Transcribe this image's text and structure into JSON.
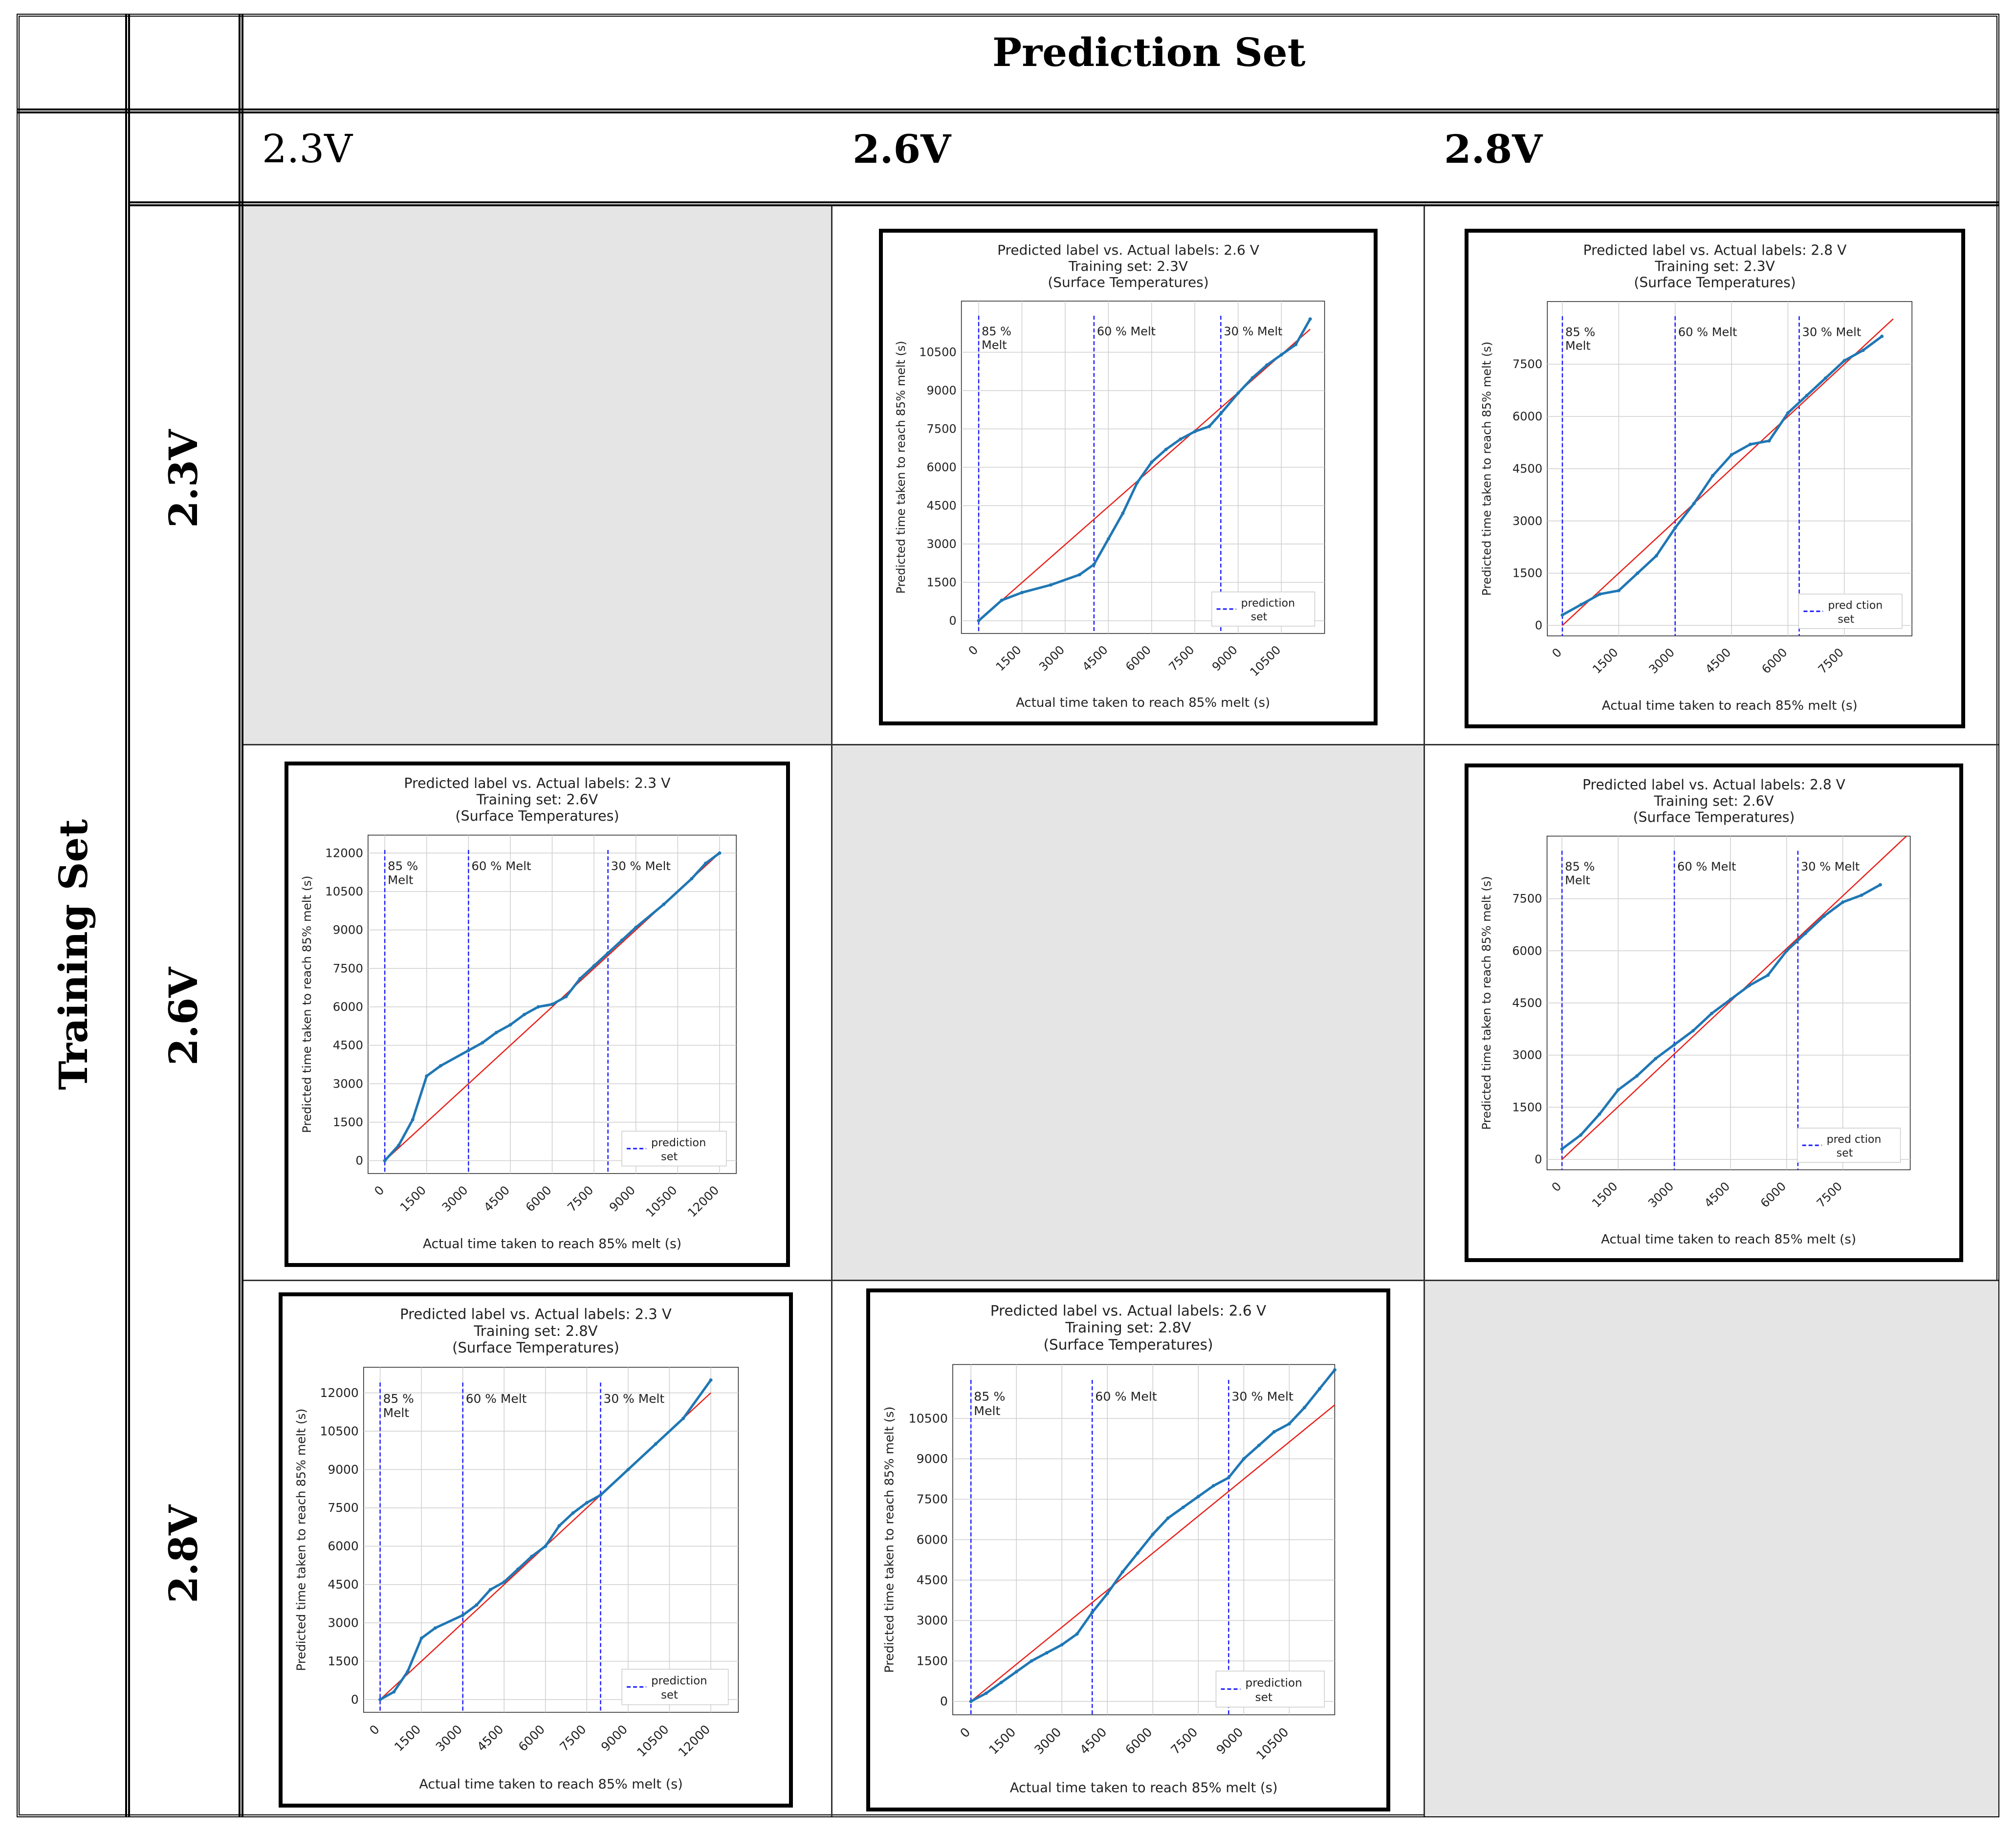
{
  "headers": {
    "prediction_set": "Prediction Set",
    "training_set": "Training Set",
    "col_labels": [
      "2.3V",
      "2.6V",
      "2.8V"
    ],
    "row_labels": [
      "2.3V",
      "2.6V",
      "2.8V"
    ]
  },
  "colors": {
    "prediction_line": "#1f77b4",
    "ideal_line": "#e8201a",
    "melt_line": "#1a1aff",
    "empty_cell": "#e5e5e5"
  },
  "chart_data": [
    {
      "id": "p_2.6_t_2.3",
      "type": "scatter",
      "title": "Predicted label vs. Actual labels: 2.6 V",
      "subtitle": "Training set: 2.3V",
      "subtitle2": "(Surface Temperatures)",
      "xlabel": "Actual time taken to reach 85% melt (s)",
      "ylabel": "Predicted time taken to reach 85% melt (s)",
      "xlim": [
        -600,
        12000
      ],
      "ylim": [
        -500,
        12500
      ],
      "xticks": [
        0,
        1500,
        3000,
        4500,
        6000,
        7500,
        9000,
        10500
      ],
      "xtick_labels": [
        "0",
        "1500",
        "3000",
        "4500",
        "6000",
        "7500",
        "9000",
        "10500"
      ],
      "yticks": [
        0,
        1500,
        3000,
        4500,
        6000,
        7500,
        9000,
        10500
      ],
      "ytick_labels": [
        "0",
        "1500",
        "3000",
        "4500",
        "6000",
        "7500",
        "9000",
        "10500"
      ],
      "melt_lines": [
        {
          "x": 0,
          "label": "85 %\nMelt"
        },
        {
          "x": 4000,
          "label": "60 % Melt"
        },
        {
          "x": 8400,
          "label": "30 % Melt"
        }
      ],
      "ideal_line": [
        [
          0,
          0
        ],
        [
          11500,
          11400
        ]
      ],
      "prediction_points": [
        [
          0,
          0
        ],
        [
          800,
          800
        ],
        [
          1500,
          1100
        ],
        [
          2500,
          1400
        ],
        [
          3500,
          1800
        ],
        [
          4000,
          2200
        ],
        [
          4500,
          3200
        ],
        [
          5000,
          4200
        ],
        [
          5500,
          5400
        ],
        [
          6000,
          6200
        ],
        [
          6500,
          6700
        ],
        [
          7000,
          7100
        ],
        [
          7500,
          7400
        ],
        [
          8000,
          7600
        ],
        [
          8400,
          8100
        ],
        [
          9000,
          8900
        ],
        [
          9500,
          9500
        ],
        [
          10000,
          10000
        ],
        [
          10500,
          10400
        ],
        [
          11000,
          10800
        ],
        [
          11500,
          11800
        ]
      ],
      "legend": "prediction set"
    },
    {
      "id": "p_2.8_t_2.3",
      "type": "scatter",
      "title": "Predicted label vs. Actual labels: 2.8 V",
      "subtitle": "Training set: 2.3V",
      "subtitle2": "(Surface Temperatures)",
      "xlabel": "Actual time taken to reach 85% melt (s)",
      "ylabel": "Predicted time taken to reach 85% melt (s)",
      "xlim": [
        -400,
        9300
      ],
      "ylim": [
        -300,
        9300
      ],
      "xticks": [
        0,
        1500,
        3000,
        4500,
        6000,
        7500
      ],
      "xtick_labels": [
        "0",
        "1500",
        "3000",
        "4500",
        "6000",
        "7500"
      ],
      "yticks": [
        0,
        1500,
        3000,
        4500,
        6000,
        7500
      ],
      "ytick_labels": [
        "0",
        "1500",
        "3000",
        "4500",
        "6000",
        "7500"
      ],
      "melt_lines": [
        {
          "x": 0,
          "label": "85 %\nMelt"
        },
        {
          "x": 3000,
          "label": "60 % Melt"
        },
        {
          "x": 6300,
          "label": "30 % Melt"
        }
      ],
      "ideal_line": [
        [
          0,
          0
        ],
        [
          8800,
          8800
        ]
      ],
      "prediction_points": [
        [
          0,
          300
        ],
        [
          500,
          600
        ],
        [
          1000,
          900
        ],
        [
          1500,
          1000
        ],
        [
          2000,
          1500
        ],
        [
          2500,
          2000
        ],
        [
          3000,
          2800
        ],
        [
          3500,
          3500
        ],
        [
          4000,
          4300
        ],
        [
          4500,
          4900
        ],
        [
          5000,
          5200
        ],
        [
          5500,
          5300
        ],
        [
          6000,
          6100
        ],
        [
          6500,
          6600
        ],
        [
          7000,
          7100
        ],
        [
          7500,
          7600
        ],
        [
          8000,
          7900
        ],
        [
          8500,
          8300
        ]
      ],
      "legend": "pred ction set"
    },
    {
      "id": "p_2.3_t_2.6",
      "type": "scatter",
      "title": "Predicted label vs. Actual labels: 2.3 V",
      "subtitle": "Training set: 2.6V",
      "subtitle2": "(Surface Temperatures)",
      "xlabel": "Actual time taken to reach 85% melt (s)",
      "ylabel": "Predicted time taken to reach 85% melt (s)",
      "xlim": [
        -600,
        12600
      ],
      "ylim": [
        -500,
        12700
      ],
      "xticks": [
        0,
        1500,
        3000,
        4500,
        6000,
        7500,
        9000,
        10500,
        12000
      ],
      "xtick_labels": [
        "0",
        "1500",
        "3000",
        "4500",
        "6000",
        "7500",
        "9000",
        "10500",
        "12000"
      ],
      "yticks": [
        0,
        1500,
        3000,
        4500,
        6000,
        7500,
        9000,
        10500,
        12000
      ],
      "ytick_labels": [
        "0",
        "1500",
        "3000",
        "4500",
        "6000",
        "7500",
        "9000",
        "10500",
        "12000"
      ],
      "melt_lines": [
        {
          "x": 0,
          "label": "85 %\nMelt"
        },
        {
          "x": 3000,
          "label": "60 % Melt"
        },
        {
          "x": 8000,
          "label": "30 % Melt"
        }
      ],
      "ideal_line": [
        [
          0,
          0
        ],
        [
          12000,
          12000
        ]
      ],
      "prediction_points": [
        [
          0,
          0
        ],
        [
          500,
          600
        ],
        [
          1000,
          1600
        ],
        [
          1500,
          3300
        ],
        [
          2000,
          3700
        ],
        [
          3000,
          4300
        ],
        [
          3500,
          4600
        ],
        [
          4000,
          5000
        ],
        [
          4500,
          5300
        ],
        [
          5000,
          5700
        ],
        [
          5500,
          6000
        ],
        [
          6000,
          6100
        ],
        [
          6500,
          6400
        ],
        [
          7000,
          7100
        ],
        [
          7500,
          7600
        ],
        [
          8000,
          8100
        ],
        [
          8500,
          8600
        ],
        [
          9000,
          9100
        ],
        [
          10000,
          10000
        ],
        [
          11000,
          11000
        ],
        [
          11500,
          11600
        ],
        [
          12000,
          12000
        ]
      ],
      "legend": "prediction set"
    },
    {
      "id": "p_2.8_t_2.6",
      "type": "scatter",
      "title": "Predicted label vs. Actual labels: 2.8 V",
      "subtitle": "Training set: 2.6V",
      "subtitle2": "(Surface Temperatures)",
      "xlabel": "Actual time taken to reach 85% melt (s)",
      "ylabel": "Predicted time taken to reach 85% melt (s)",
      "xlim": [
        -400,
        9300
      ],
      "ylim": [
        -300,
        9300
      ],
      "xticks": [
        0,
        1500,
        3000,
        4500,
        6000,
        7500
      ],
      "xtick_labels": [
        "0",
        "1500",
        "3000",
        "4500",
        "6000",
        "7500"
      ],
      "yticks": [
        0,
        1500,
        3000,
        4500,
        6000,
        7500
      ],
      "ytick_labels": [
        "0",
        "1500",
        "3000",
        "4500",
        "6000",
        "7500"
      ],
      "melt_lines": [
        {
          "x": 0,
          "label": "85 %\nMelt"
        },
        {
          "x": 3000,
          "label": "60 % Melt"
        },
        {
          "x": 6300,
          "label": "30 % Melt"
        }
      ],
      "ideal_line": [
        [
          0,
          0
        ],
        [
          9200,
          9300
        ]
      ],
      "prediction_points": [
        [
          0,
          300
        ],
        [
          500,
          700
        ],
        [
          1000,
          1300
        ],
        [
          1500,
          2000
        ],
        [
          2000,
          2400
        ],
        [
          2500,
          2900
        ],
        [
          3000,
          3300
        ],
        [
          3500,
          3700
        ],
        [
          4000,
          4200
        ],
        [
          4500,
          4600
        ],
        [
          5000,
          5000
        ],
        [
          5500,
          5300
        ],
        [
          6000,
          6000
        ],
        [
          6500,
          6500
        ],
        [
          7000,
          7000
        ],
        [
          7500,
          7400
        ],
        [
          8000,
          7600
        ],
        [
          8500,
          7900
        ]
      ],
      "legend": "pred ction set"
    },
    {
      "id": "p_2.3_t_2.8",
      "type": "scatter",
      "title": "Predicted label vs. Actual labels: 2.3 V",
      "subtitle": "Training set: 2.8V",
      "subtitle2": "(Surface Temperatures)",
      "xlabel": "Actual time taken to reach 85% melt (s)",
      "ylabel": "Predicted time taken to reach 85% melt (s)",
      "xlim": [
        -600,
        13000
      ],
      "ylim": [
        -500,
        13000
      ],
      "xticks": [
        0,
        1500,
        3000,
        4500,
        6000,
        7500,
        9000,
        10500,
        12000
      ],
      "xtick_labels": [
        "0",
        "1500",
        "3000",
        "4500",
        "6000",
        "7500",
        "9000",
        "10500",
        "12000"
      ],
      "yticks": [
        0,
        1500,
        3000,
        4500,
        6000,
        7500,
        9000,
        10500,
        12000
      ],
      "ytick_labels": [
        "0",
        "1500",
        "3000",
        "4500",
        "6000",
        "7500",
        "9000",
        "10500",
        "12000"
      ],
      "melt_lines": [
        {
          "x": 0,
          "label": "85 %\nMelt"
        },
        {
          "x": 3000,
          "label": "60 % Melt"
        },
        {
          "x": 8000,
          "label": "30 % Melt"
        }
      ],
      "ideal_line": [
        [
          0,
          0
        ],
        [
          12000,
          12000
        ]
      ],
      "prediction_points": [
        [
          0,
          0
        ],
        [
          500,
          300
        ],
        [
          1000,
          1100
        ],
        [
          1500,
          2400
        ],
        [
          2000,
          2800
        ],
        [
          3000,
          3300
        ],
        [
          3500,
          3700
        ],
        [
          4000,
          4300
        ],
        [
          4500,
          4600
        ],
        [
          5000,
          5100
        ],
        [
          5500,
          5600
        ],
        [
          6000,
          6000
        ],
        [
          6500,
          6800
        ],
        [
          7000,
          7300
        ],
        [
          7500,
          7700
        ],
        [
          8000,
          8000
        ],
        [
          9000,
          9000
        ],
        [
          10000,
          10000
        ],
        [
          11000,
          11000
        ],
        [
          12000,
          12500
        ]
      ],
      "legend": "prediction set"
    },
    {
      "id": "p_2.6_t_2.8",
      "type": "scatter",
      "title": "Predicted label vs. Actual labels: 2.6 V",
      "subtitle": "Training set: 2.8V",
      "subtitle2": "(Surface Temperatures)",
      "xlabel": "Actual time taken to reach 85% melt (s)",
      "ylabel": "Predicted time taken to reach 85% melt (s)",
      "xlim": [
        -600,
        12000
      ],
      "ylim": [
        -500,
        12500
      ],
      "xticks": [
        0,
        1500,
        3000,
        4500,
        6000,
        7500,
        9000,
        10500
      ],
      "xtick_labels": [
        "0",
        "1500",
        "3000",
        "4500",
        "6000",
        "7500",
        "9000",
        "10500"
      ],
      "yticks": [
        0,
        1500,
        3000,
        4500,
        6000,
        7500,
        9000,
        10500
      ],
      "ytick_labels": [
        "0",
        "1500",
        "3000",
        "4500",
        "6000",
        "7500",
        "9000",
        "10500"
      ],
      "melt_lines": [
        {
          "x": 0,
          "label": "85 %\nMelt"
        },
        {
          "x": 4000,
          "label": "60 % Melt"
        },
        {
          "x": 8500,
          "label": "30 % Melt"
        }
      ],
      "ideal_line": [
        [
          0,
          0
        ],
        [
          12000,
          11000
        ]
      ],
      "prediction_points": [
        [
          0,
          0
        ],
        [
          500,
          300
        ],
        [
          1000,
          700
        ],
        [
          1500,
          1100
        ],
        [
          2000,
          1500
        ],
        [
          2500,
          1800
        ],
        [
          3000,
          2100
        ],
        [
          3500,
          2500
        ],
        [
          4000,
          3300
        ],
        [
          4500,
          4000
        ],
        [
          5000,
          4800
        ],
        [
          5500,
          5500
        ],
        [
          6000,
          6200
        ],
        [
          6500,
          6800
        ],
        [
          7000,
          7200
        ],
        [
          7500,
          7600
        ],
        [
          8000,
          8000
        ],
        [
          8500,
          8300
        ],
        [
          9000,
          9000
        ],
        [
          9500,
          9500
        ],
        [
          10000,
          10000
        ],
        [
          10500,
          10300
        ],
        [
          11000,
          10900
        ],
        [
          11500,
          11600
        ],
        [
          12000,
          12300
        ]
      ],
      "legend": "prediction set"
    }
  ]
}
